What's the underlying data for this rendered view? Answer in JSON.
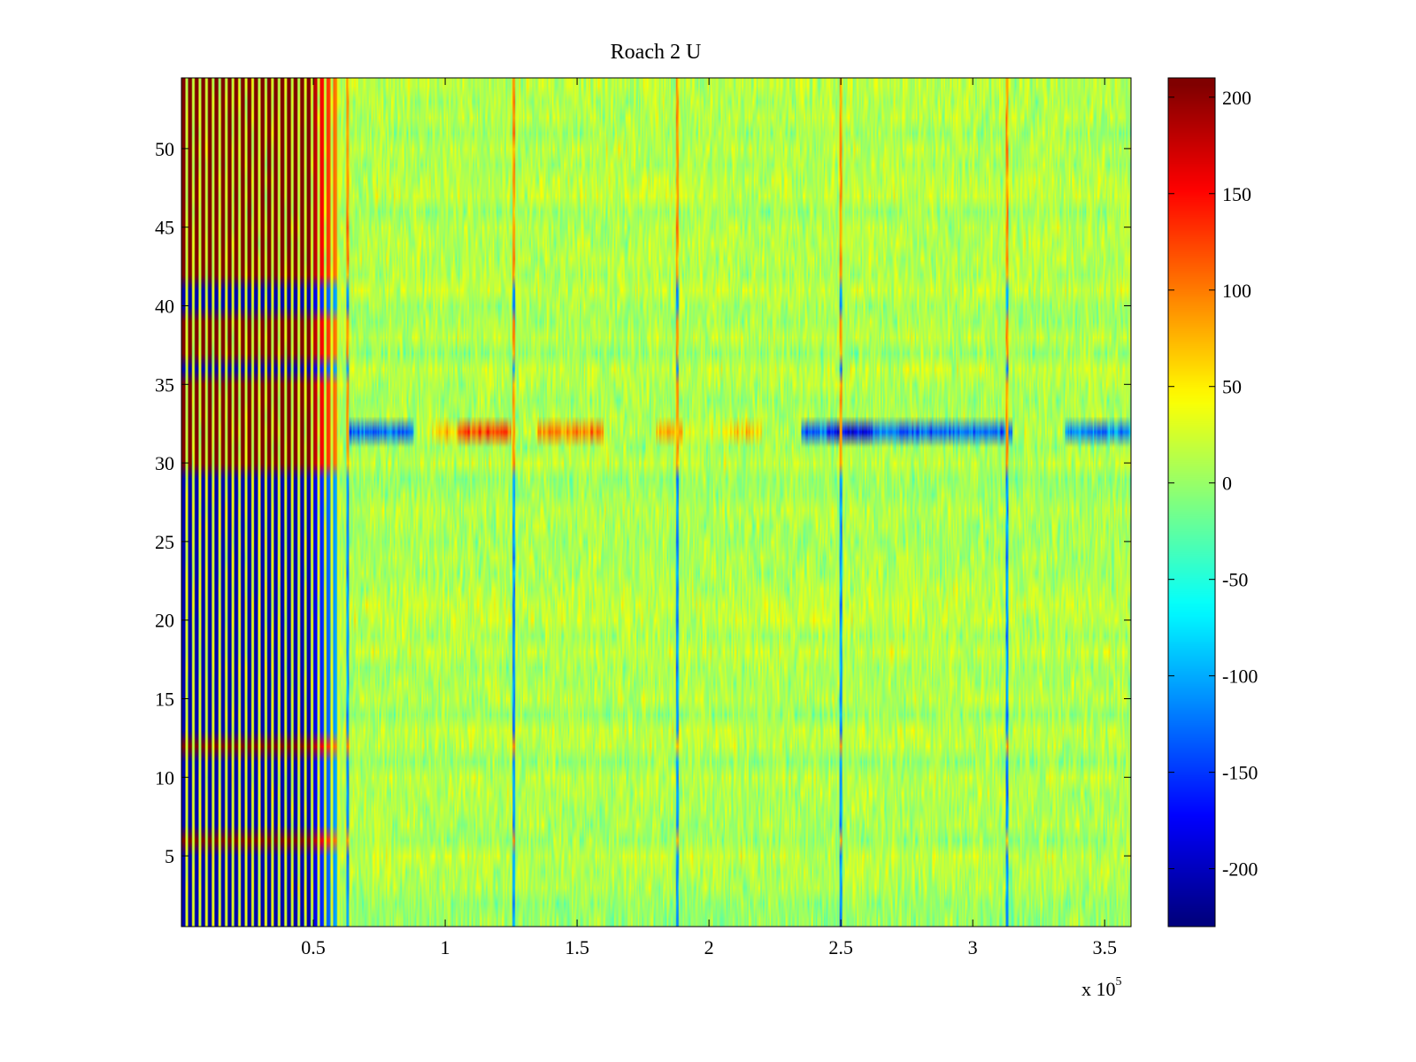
{
  "chart_data": {
    "type": "heatmap",
    "title": "Roach 2 U",
    "xlabel": "",
    "ylabel": "",
    "x_range": [
      0,
      360000
    ],
    "y_range": [
      0.5,
      54.5
    ],
    "rows": 54,
    "x_multiplier": {
      "prefix": "x 10",
      "exponent": "5"
    },
    "x_ticks": [
      {
        "value": 50000,
        "label": "0.5"
      },
      {
        "value": 100000,
        "label": "1"
      },
      {
        "value": 150000,
        "label": "1.5"
      },
      {
        "value": 200000,
        "label": "2"
      },
      {
        "value": 250000,
        "label": "2.5"
      },
      {
        "value": 300000,
        "label": "3"
      },
      {
        "value": 350000,
        "label": "3.5"
      }
    ],
    "y_ticks": [
      {
        "value": 5,
        "label": "5"
      },
      {
        "value": 10,
        "label": "10"
      },
      {
        "value": 15,
        "label": "15"
      },
      {
        "value": 20,
        "label": "20"
      },
      {
        "value": 25,
        "label": "25"
      },
      {
        "value": 30,
        "label": "30"
      },
      {
        "value": 35,
        "label": "35"
      },
      {
        "value": 40,
        "label": "40"
      },
      {
        "value": 45,
        "label": "45"
      },
      {
        "value": 50,
        "label": "50"
      }
    ],
    "colorbar": {
      "colormap": "jet",
      "range": [
        -230,
        210
      ],
      "ticks": [
        {
          "value": 200,
          "label": "200"
        },
        {
          "value": 150,
          "label": "150"
        },
        {
          "value": 100,
          "label": "100"
        },
        {
          "value": 50,
          "label": "50"
        },
        {
          "value": 0,
          "label": "0"
        },
        {
          "value": -50,
          "label": "-50"
        },
        {
          "value": -100,
          "label": "-100"
        },
        {
          "value": -150,
          "label": "-150"
        },
        {
          "value": -200,
          "label": "-200"
        }
      ]
    },
    "region_values": {
      "background_mean": 10,
      "background_spread": 22,
      "oscillation_region_x": [
        0,
        60000
      ],
      "oscillation_period_x": 2300,
      "row_32_band": [
        {
          "x": [
            63000,
            88000
          ],
          "value": -130
        },
        {
          "x": [
            88000,
            95000
          ],
          "value": 10
        },
        {
          "x": [
            95000,
            120000
          ],
          "value": 60
        },
        {
          "x": [
            105000,
            125000
          ],
          "value": 120
        },
        {
          "x": [
            125000,
            135000
          ],
          "value": 10
        },
        {
          "x": [
            135000,
            160000
          ],
          "value": 100
        },
        {
          "x": [
            160000,
            180000
          ],
          "value": 10
        },
        {
          "x": [
            180000,
            190000
          ],
          "value": 80
        },
        {
          "x": [
            190000,
            205000
          ],
          "value": 20
        },
        {
          "x": [
            205000,
            220000
          ],
          "value": 60
        },
        {
          "x": [
            220000,
            235000
          ],
          "value": 10
        },
        {
          "x": [
            235000,
            315000
          ],
          "value": -130
        },
        {
          "x": [
            245000,
            262000
          ],
          "value": -175
        },
        {
          "x": [
            315000,
            335000
          ],
          "value": 10
        },
        {
          "x": [
            335000,
            360000
          ],
          "value": -115
        }
      ],
      "periodic_spike_x": [
        63000,
        126000,
        188000,
        250000,
        313000
      ]
    }
  }
}
